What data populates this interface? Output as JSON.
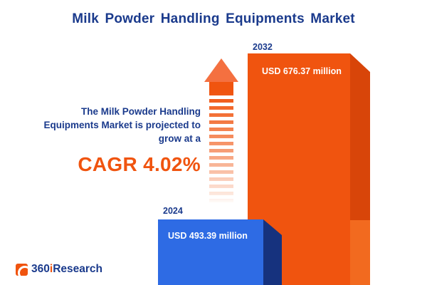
{
  "title": "Milk Powder Handling Equipments Market",
  "annotation": {
    "text": "The Milk Powder Handling Equipments Market is projected to grow at a",
    "cagr": "CAGR 4.02%"
  },
  "chart_data": {
    "type": "bar",
    "categories": [
      "2024",
      "2032"
    ],
    "values": [
      493.39,
      676.37
    ],
    "value_labels": [
      "USD 493.39 million",
      "USD 676.37 million"
    ],
    "unit": "USD million",
    "title": "Milk Powder Handling Equipments Market",
    "annotation": "CAGR 4.02%",
    "legend": "none",
    "grid": false,
    "style": "3d-infographic-bars-not-to-scale",
    "series_colors": {
      "2024": "#2e6be4",
      "2032": "#f0540f"
    }
  },
  "icons": {
    "growth_arrow": "upward-arrow-with-fading-dashes"
  },
  "colors": {
    "navy": "#1a3a8c",
    "orange": "#f0540f",
    "orange_dark": "#d84509",
    "blue": "#2e6be4",
    "blue_dark": "#16327e",
    "background": "#ffffff"
  },
  "logo": {
    "part1": "360",
    "part2": "i",
    "part3": "Research"
  }
}
